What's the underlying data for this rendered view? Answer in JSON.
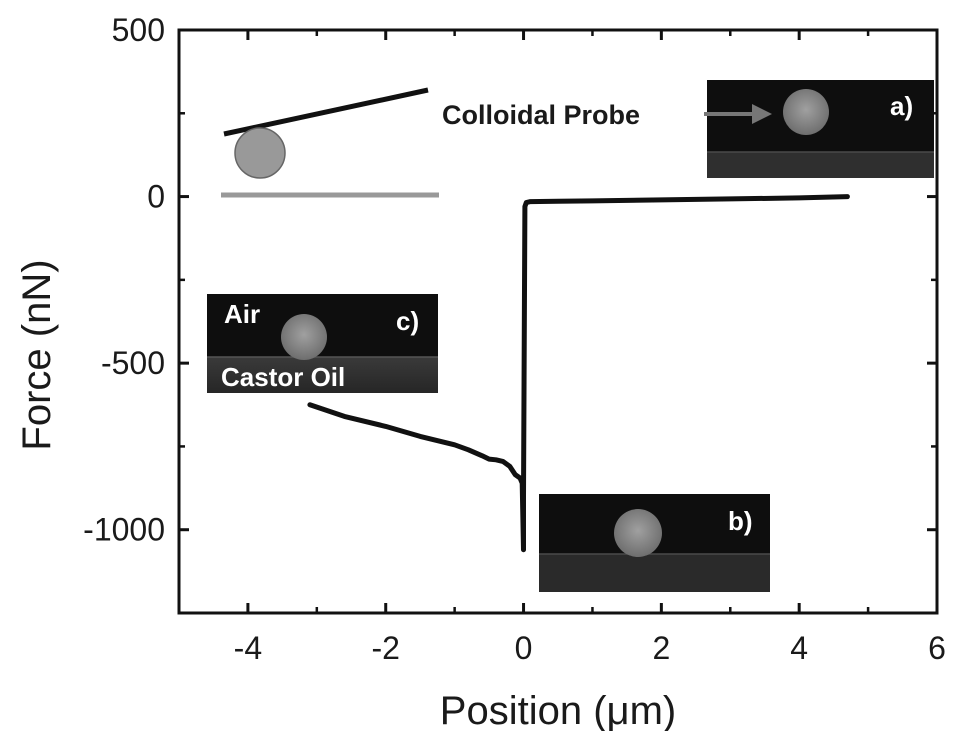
{
  "chart_data": {
    "type": "line",
    "xlabel": "Position (μm)",
    "ylabel": "Force (nN)",
    "xlim": [
      -5,
      6
    ],
    "ylim": [
      -1250,
      500
    ],
    "xticks": [
      -4,
      -2,
      0,
      2,
      4,
      6
    ],
    "yticks": [
      500,
      0,
      -500,
      -1000
    ],
    "xtick_labels": [
      "-4",
      "-2",
      "0",
      "2",
      "4",
      "6"
    ],
    "ytick_labels": [
      "500",
      "0",
      "-500",
      "-1000"
    ],
    "grid": false,
    "series": [
      {
        "x": [
          -3.1,
          -2.6,
          -2.0,
          -1.5,
          -1.0,
          -0.8,
          -0.6,
          -0.5,
          -0.4,
          -0.3,
          -0.2,
          -0.12,
          -0.05,
          -0.02,
          0.0,
          0.0,
          0.02,
          0.04,
          0.1,
          0.5,
          1.0,
          2.0,
          3.0,
          4.0,
          4.7
        ],
        "y": [
          -625,
          -660,
          -690,
          -720,
          -745,
          -760,
          -778,
          -788,
          -790,
          -795,
          -810,
          -835,
          -845,
          -860,
          -1060,
          -900,
          -30,
          -18,
          -15,
          -14,
          -13,
          -10,
          -7,
          -4,
          0
        ]
      }
    ],
    "annotations": [
      "Colloidal Probe",
      "a)",
      "b)",
      "c)",
      "Air",
      "Castor Oil"
    ]
  },
  "colors": {
    "line": "#111111",
    "inset_background": "#101010",
    "probe_sphere": "#8c8c8c",
    "arrow": "#777777",
    "schematic_cantilever": "#111111",
    "schematic_sphere": "#999999",
    "schematic_surface": "#999999"
  }
}
